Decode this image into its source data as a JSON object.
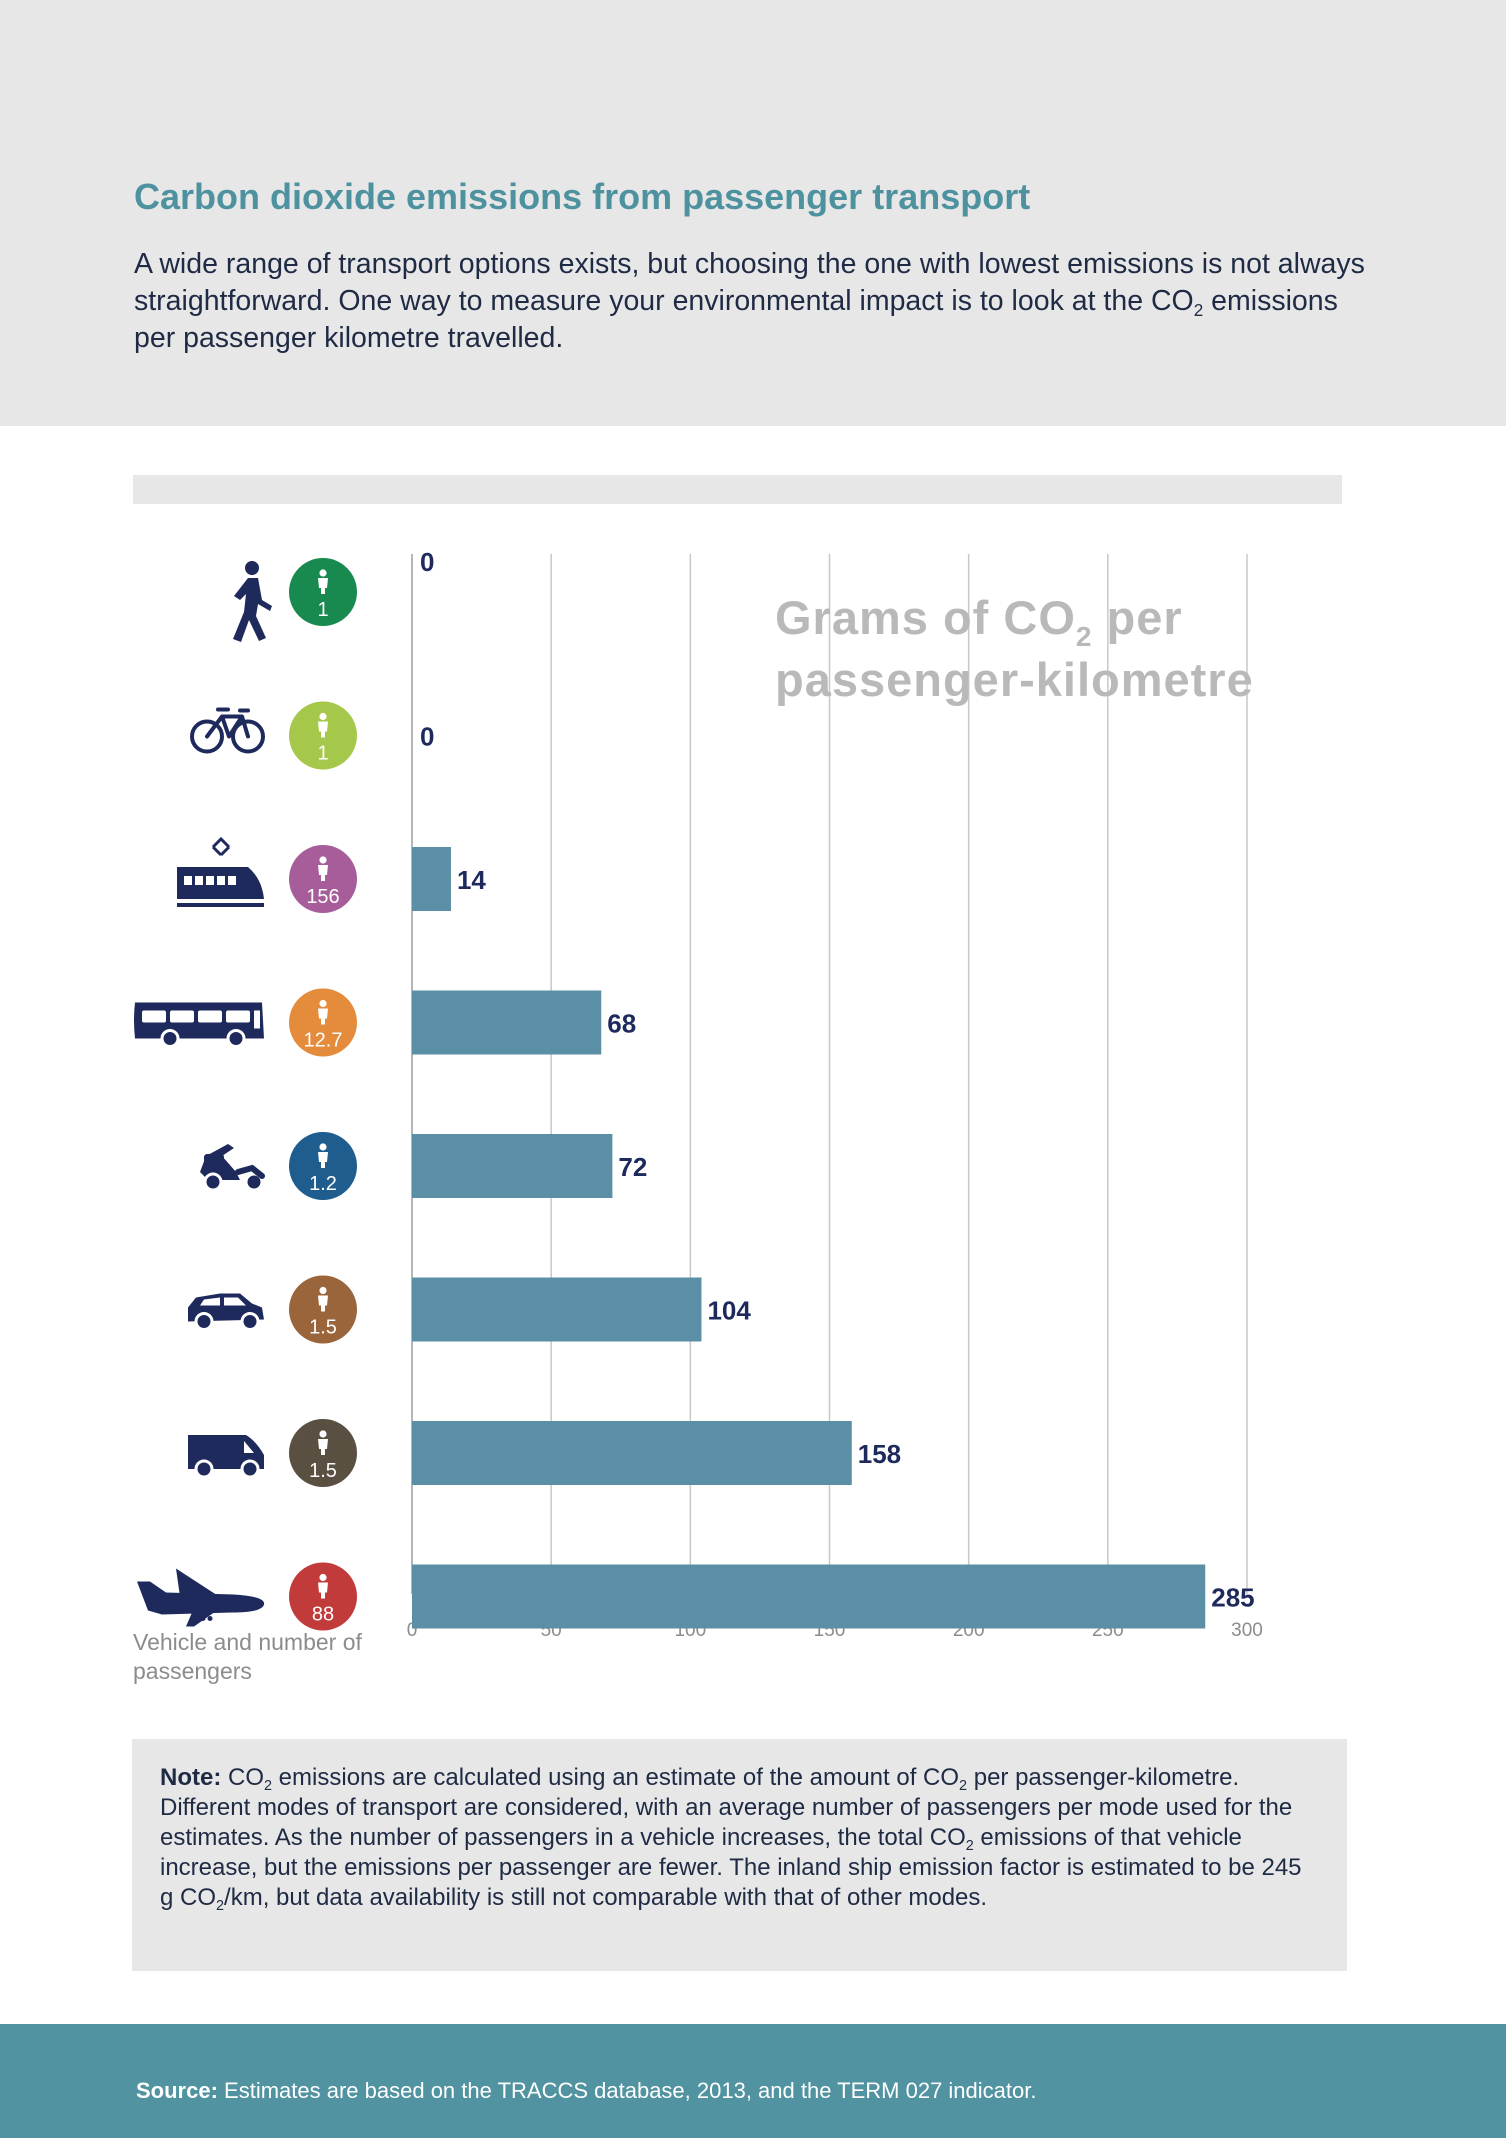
{
  "header": {
    "title": "Carbon dioxide emissions from passenger transport",
    "intro_before": "A wide range of transport options exists, but choosing the one with lowest emissions is not always straightforward. One way to measure your environmental impact is to look at the CO",
    "intro_sub": "2",
    "intro_after": " emissions per passenger kilometre travelled."
  },
  "chart_data": {
    "type": "bar",
    "orientation": "horizontal",
    "title": "Grams of CO2 per passenger-kilometre",
    "title_parts": {
      "main": "Grams of CO",
      "sub": "2",
      "end": " per",
      "line2": "passenger-kilometre"
    },
    "ylabel": "Vehicle and number of passengers",
    "xlim": [
      0,
      300
    ],
    "xticks": [
      0,
      50,
      100,
      150,
      200,
      250,
      300
    ],
    "grid": true,
    "categories": [
      {
        "icon": "pedestrian-icon",
        "passengers": "1",
        "value": 0,
        "label": "0",
        "badge_color": "#198a4f"
      },
      {
        "icon": "bicycle-icon",
        "passengers": "1",
        "value": 0,
        "label": "0",
        "badge_color": "#a6c84a"
      },
      {
        "icon": "train-icon",
        "passengers": "156",
        "value": 14,
        "label": "14",
        "badge_color": "#a85d9b"
      },
      {
        "icon": "bus-icon",
        "passengers": "12.7",
        "value": 68,
        "label": "68",
        "badge_color": "#e58b3c"
      },
      {
        "icon": "scooter-icon",
        "passengers": "1.2",
        "value": 72,
        "label": "72",
        "badge_color": "#1f5d8e"
      },
      {
        "icon": "car-icon",
        "passengers": "1.5",
        "value": 104,
        "label": "104",
        "badge_color": "#9a653b"
      },
      {
        "icon": "van-icon",
        "passengers": "1.5",
        "value": 158,
        "label": "158",
        "badge_color": "#5a5041"
      },
      {
        "icon": "airplane-icon",
        "passengers": "88",
        "value": 285,
        "label": "285",
        "badge_color": "#c23b3b"
      }
    ],
    "bar_color": "#5b8fa6",
    "icon_color": "#1f2a5c"
  },
  "note": {
    "label": "Note:",
    "p1": " CO",
    "s1": "2",
    "p2": " emissions are calculated using an estimate of the amount of CO",
    "s2": "2",
    "p3": " per passenger-kilometre. Different modes of transport are considered, with an average number of passengers per mode used for the estimates. As the number of passengers in a vehicle increases, the total CO",
    "s3": "2",
    "p4": " emissions of that vehicle increase, but the emissions per passenger are fewer. The inland ship emission factor is estimated to be 245 g CO",
    "s4": "2",
    "p5": "/km, but data availability is still not comparable with that of other modes."
  },
  "footer": {
    "label": "Source:",
    "text": " Estimates are based on the TRACCS database, 2013, and the TERM 027 indicator."
  }
}
